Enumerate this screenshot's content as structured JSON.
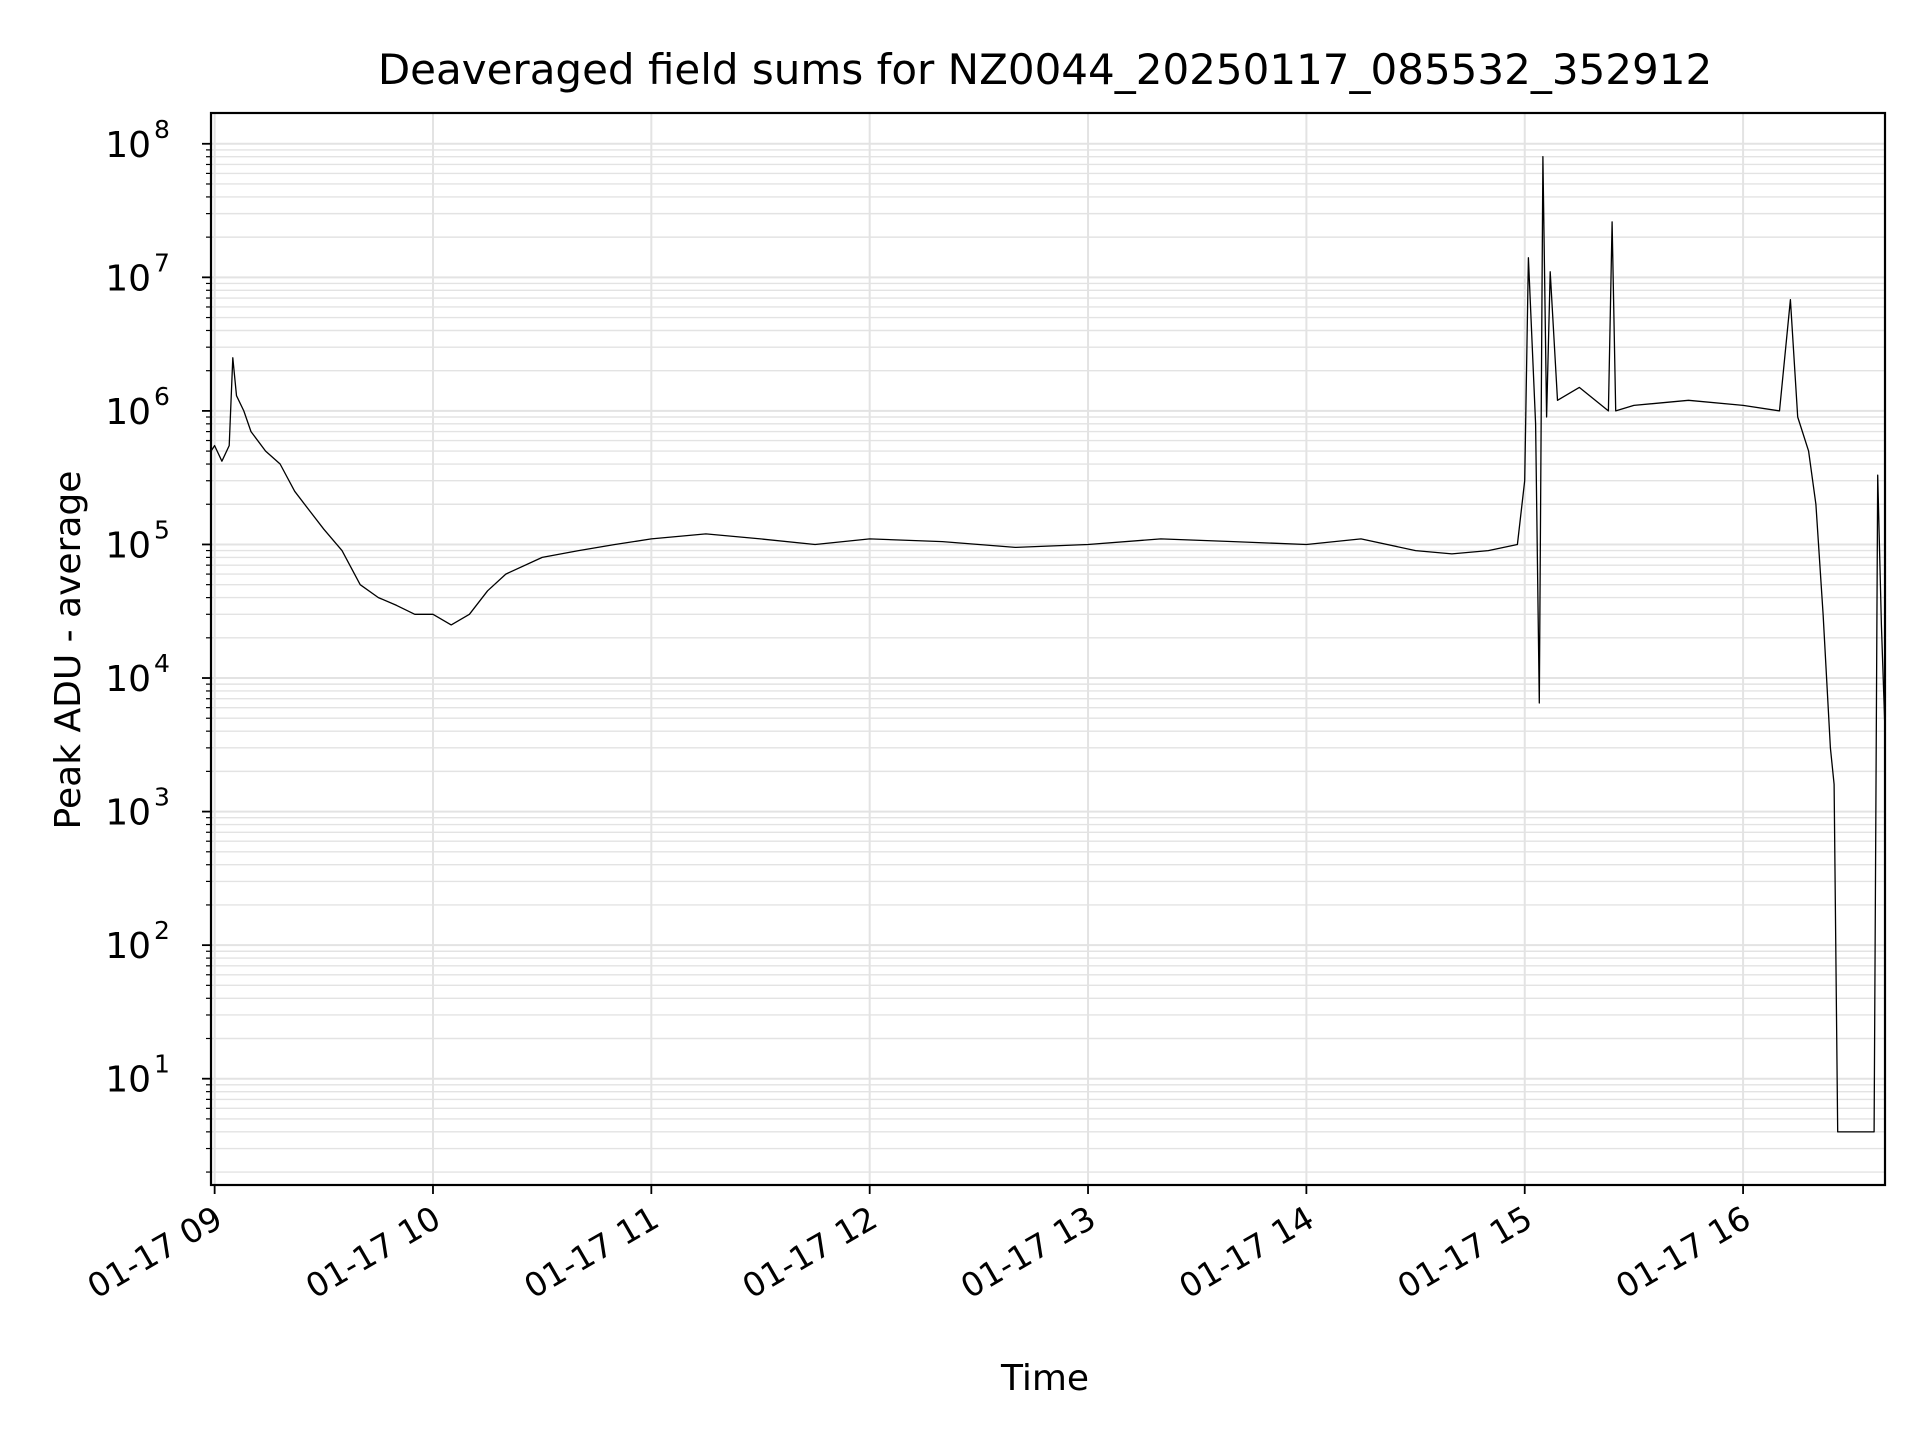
{
  "chart_data": {
    "type": "line",
    "title": "Deaveraged field sums for NZ0044_20250117_085532_352912",
    "xlabel": "Time",
    "ylabel": "Peak ADU - average",
    "yscale": "log",
    "ylim": [
      1.6,
      170000000
    ],
    "xlim": [
      "2025-01-17 08:59:00",
      "2025-01-17 16:39:00"
    ],
    "grid": true,
    "line_color": "#000000",
    "grid_color": "#e3e3e3",
    "x_ticks": [
      {
        "t": "2025-01-17 09:00",
        "label": "01-17 09"
      },
      {
        "t": "2025-01-17 10:00",
        "label": "01-17 10"
      },
      {
        "t": "2025-01-17 11:00",
        "label": "01-17 11"
      },
      {
        "t": "2025-01-17 12:00",
        "label": "01-17 12"
      },
      {
        "t": "2025-01-17 13:00",
        "label": "01-17 13"
      },
      {
        "t": "2025-01-17 14:00",
        "label": "01-17 14"
      },
      {
        "t": "2025-01-17 15:00",
        "label": "01-17 15"
      },
      {
        "t": "2025-01-17 16:00",
        "label": "01-17 16"
      }
    ],
    "y_ticks": [
      {
        "v": 10,
        "base": "10",
        "exp": "1"
      },
      {
        "v": 100,
        "base": "10",
        "exp": "2"
      },
      {
        "v": 1000,
        "base": "10",
        "exp": "3"
      },
      {
        "v": 10000,
        "base": "10",
        "exp": "4"
      },
      {
        "v": 100000,
        "base": "10",
        "exp": "5"
      },
      {
        "v": 1000000,
        "base": "10",
        "exp": "6"
      },
      {
        "v": 10000000,
        "base": "10",
        "exp": "7"
      },
      {
        "v": 100000000,
        "base": "10",
        "exp": "8"
      }
    ],
    "series": [
      {
        "x": [
          "2025-01-17 08:59",
          "2025-01-17 09:00",
          "2025-01-17 09:02",
          "2025-01-17 09:04",
          "2025-01-17 09:05",
          "2025-01-17 09:06",
          "2025-01-17 09:08",
          "2025-01-17 09:10",
          "2025-01-17 09:14",
          "2025-01-17 09:18",
          "2025-01-17 09:22",
          "2025-01-17 09:26",
          "2025-01-17 09:30",
          "2025-01-17 09:35",
          "2025-01-17 09:40",
          "2025-01-17 09:45",
          "2025-01-17 09:50",
          "2025-01-17 09:55",
          "2025-01-17 10:00",
          "2025-01-17 10:05",
          "2025-01-17 10:10",
          "2025-01-17 10:15",
          "2025-01-17 10:20",
          "2025-01-17 10:30",
          "2025-01-17 10:40",
          "2025-01-17 10:50",
          "2025-01-17 11:00",
          "2025-01-17 11:15",
          "2025-01-17 11:30",
          "2025-01-17 11:45",
          "2025-01-17 12:00",
          "2025-01-17 12:20",
          "2025-01-17 12:40",
          "2025-01-17 13:00",
          "2025-01-17 13:20",
          "2025-01-17 13:40",
          "2025-01-17 14:00",
          "2025-01-17 14:15",
          "2025-01-17 14:30",
          "2025-01-17 14:40",
          "2025-01-17 14:50",
          "2025-01-17 14:58",
          "2025-01-17 15:00",
          "2025-01-17 15:01",
          "2025-01-17 15:03",
          "2025-01-17 15:04",
          "2025-01-17 15:05",
          "2025-01-17 15:06",
          "2025-01-17 15:07",
          "2025-01-17 15:09",
          "2025-01-17 15:15",
          "2025-01-17 15:23",
          "2025-01-17 15:24",
          "2025-01-17 15:25",
          "2025-01-17 15:30",
          "2025-01-17 15:45",
          "2025-01-17 16:00",
          "2025-01-17 16:10",
          "2025-01-17 16:13",
          "2025-01-17 16:15",
          "2025-01-17 16:18",
          "2025-01-17 16:20",
          "2025-01-17 16:22",
          "2025-01-17 16:24",
          "2025-01-17 16:25",
          "2025-01-17 16:26",
          "2025-01-17 16:27",
          "2025-01-17 16:30",
          "2025-01-17 16:36",
          "2025-01-17 16:37",
          "2025-01-17 16:38",
          "2025-01-17 16:39"
        ],
        "y": [
          500000,
          550000,
          420000,
          550000,
          2500000,
          1300000,
          1000000,
          700000,
          500000,
          400000,
          250000,
          180000,
          130000,
          90000,
          50000,
          40000,
          35000,
          30000,
          30000,
          25000,
          30000,
          45000,
          60000,
          80000,
          90000,
          100000,
          110000,
          120000,
          110000,
          100000,
          110000,
          105000,
          95000,
          100000,
          110000,
          105000,
          100000,
          110000,
          90000,
          85000,
          90000,
          100000,
          300000,
          14000000,
          800000,
          6500,
          80000000,
          900000,
          11000000,
          1200000,
          1500000,
          1000000,
          26000000,
          1000000,
          1100000,
          1200000,
          1100000,
          1000000,
          6800000,
          900000,
          500000,
          200000,
          30000,
          3000,
          1600,
          4,
          4,
          4,
          4,
          330000,
          25000,
          4000
        ]
      }
    ]
  }
}
